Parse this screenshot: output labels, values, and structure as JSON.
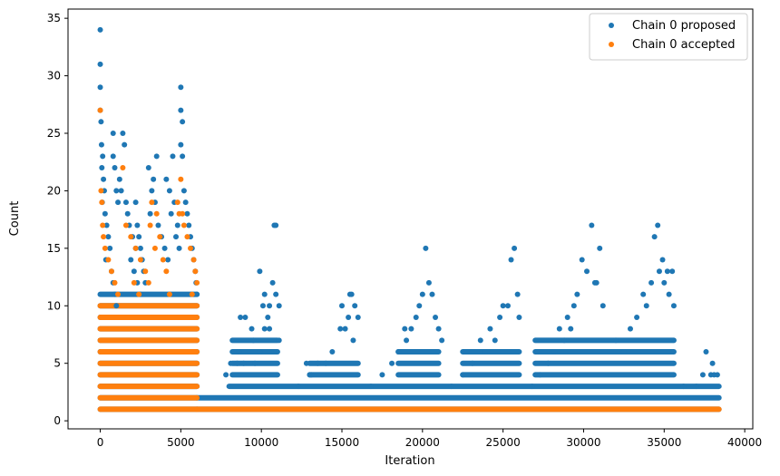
{
  "chart_data": {
    "type": "scatter",
    "title": "",
    "xlabel": "Iteration",
    "ylabel": "Count",
    "xlim": [
      -2000,
      40500
    ],
    "ylim": [
      -0.7,
      35.8
    ],
    "xticks": [
      0,
      5000,
      10000,
      15000,
      20000,
      25000,
      30000,
      35000,
      40000
    ],
    "xtick_labels": [
      "0",
      "5000",
      "10000",
      "15000",
      "20000",
      "25000",
      "30000",
      "35000",
      "40000"
    ],
    "yticks": [
      0,
      5,
      10,
      15,
      20,
      25,
      30,
      35
    ],
    "ytick_labels": [
      "0",
      "5",
      "10",
      "15",
      "20",
      "25",
      "30",
      "35"
    ],
    "grid": false,
    "legend_position": "top-right",
    "series": [
      {
        "name": "Chain 0 proposed",
        "color": "#1f77b4",
        "points": [
          [
            0,
            34
          ],
          [
            0,
            31
          ],
          [
            0,
            29
          ],
          [
            0,
            27
          ],
          [
            50,
            26
          ],
          [
            80,
            24
          ],
          [
            150,
            23
          ],
          [
            100,
            22
          ],
          [
            200,
            21
          ],
          [
            250,
            20
          ],
          [
            120,
            19
          ],
          [
            300,
            18
          ],
          [
            400,
            17
          ],
          [
            500,
            16
          ],
          [
            600,
            15
          ],
          [
            350,
            14
          ],
          [
            700,
            13
          ],
          [
            800,
            12
          ],
          [
            900,
            11
          ],
          [
            1000,
            10
          ],
          [
            1400,
            25
          ],
          [
            800,
            25
          ],
          [
            1500,
            24
          ],
          [
            800,
            23
          ],
          [
            900,
            22
          ],
          [
            1200,
            21
          ],
          [
            1000,
            20
          ],
          [
            1300,
            20
          ],
          [
            1100,
            19
          ],
          [
            1600,
            19
          ],
          [
            1700,
            18
          ],
          [
            1800,
            17
          ],
          [
            2000,
            16
          ],
          [
            2200,
            15
          ],
          [
            1900,
            14
          ],
          [
            2100,
            13
          ],
          [
            2300,
            12
          ],
          [
            2500,
            11
          ],
          [
            2200,
            19
          ],
          [
            2300,
            17
          ],
          [
            2400,
            16
          ],
          [
            2500,
            15
          ],
          [
            2600,
            14
          ],
          [
            2700,
            13
          ],
          [
            2800,
            12
          ],
          [
            3000,
            22
          ],
          [
            3500,
            23
          ],
          [
            3300,
            21
          ],
          [
            3200,
            20
          ],
          [
            3400,
            19
          ],
          [
            3100,
            18
          ],
          [
            3600,
            17
          ],
          [
            3800,
            16
          ],
          [
            4000,
            15
          ],
          [
            4100,
            21
          ],
          [
            4300,
            20
          ],
          [
            4600,
            19
          ],
          [
            4400,
            18
          ],
          [
            4800,
            17
          ],
          [
            4700,
            16
          ],
          [
            4900,
            15
          ],
          [
            4500,
            23
          ],
          [
            4200,
            14
          ],
          [
            5000,
            29
          ],
          [
            5000,
            27
          ],
          [
            5100,
            26
          ],
          [
            5000,
            24
          ],
          [
            5100,
            23
          ],
          [
            5200,
            20
          ],
          [
            5300,
            19
          ],
          [
            5400,
            18
          ],
          [
            5500,
            17
          ],
          [
            5600,
            16
          ],
          [
            5700,
            15
          ],
          [
            5800,
            14
          ],
          [
            5900,
            13
          ],
          [
            5950,
            12
          ],
          [
            6000,
            11
          ],
          [
            7800,
            4
          ],
          [
            8100,
            5
          ],
          [
            8500,
            5
          ],
          [
            8900,
            5
          ],
          [
            8600,
            6
          ],
          [
            8700,
            9
          ],
          [
            9000,
            9
          ],
          [
            9400,
            8
          ],
          [
            9500,
            7
          ],
          [
            9600,
            5
          ],
          [
            9900,
            6
          ],
          [
            9900,
            13
          ],
          [
            10100,
            10
          ],
          [
            10200,
            11
          ],
          [
            10200,
            8
          ],
          [
            10400,
            9
          ],
          [
            10500,
            10
          ],
          [
            10500,
            8
          ],
          [
            10700,
            12
          ],
          [
            10800,
            17
          ],
          [
            10900,
            17
          ],
          [
            10900,
            11
          ],
          [
            11100,
            10
          ],
          [
            11100,
            7
          ],
          [
            12300,
            3
          ],
          [
            12800,
            5
          ],
          [
            13000,
            4
          ],
          [
            13100,
            4
          ],
          [
            13500,
            5
          ],
          [
            14000,
            5
          ],
          [
            14400,
            6
          ],
          [
            14900,
            8
          ],
          [
            15000,
            10
          ],
          [
            15200,
            8
          ],
          [
            15400,
            9
          ],
          [
            15500,
            11
          ],
          [
            15600,
            11
          ],
          [
            15800,
            10
          ],
          [
            16000,
            9
          ],
          [
            15700,
            7
          ],
          [
            16800,
            3
          ],
          [
            17500,
            4
          ],
          [
            18100,
            5
          ],
          [
            18500,
            6
          ],
          [
            18900,
            8
          ],
          [
            19000,
            7
          ],
          [
            19300,
            8
          ],
          [
            19600,
            9
          ],
          [
            19800,
            10
          ],
          [
            20000,
            11
          ],
          [
            20200,
            15
          ],
          [
            20400,
            12
          ],
          [
            20600,
            11
          ],
          [
            20800,
            9
          ],
          [
            21000,
            8
          ],
          [
            21200,
            7
          ],
          [
            21800,
            3
          ],
          [
            22500,
            4
          ],
          [
            23100,
            5
          ],
          [
            23600,
            7
          ],
          [
            23900,
            6
          ],
          [
            24200,
            8
          ],
          [
            24500,
            7
          ],
          [
            24800,
            9
          ],
          [
            25000,
            10
          ],
          [
            25300,
            10
          ],
          [
            25500,
            14
          ],
          [
            25700,
            15
          ],
          [
            25900,
            11
          ],
          [
            26000,
            9
          ],
          [
            26800,
            3
          ],
          [
            27300,
            4
          ],
          [
            27800,
            5
          ],
          [
            28200,
            6
          ],
          [
            28500,
            8
          ],
          [
            28800,
            7
          ],
          [
            29000,
            9
          ],
          [
            29200,
            8
          ],
          [
            29400,
            10
          ],
          [
            29600,
            11
          ],
          [
            29900,
            14
          ],
          [
            30200,
            13
          ],
          [
            30500,
            17
          ],
          [
            30700,
            12
          ],
          [
            30800,
            12
          ],
          [
            31000,
            15
          ],
          [
            31200,
            10
          ],
          [
            32000,
            7
          ],
          [
            32500,
            6
          ],
          [
            32900,
            8
          ],
          [
            33300,
            9
          ],
          [
            33700,
            11
          ],
          [
            33900,
            10
          ],
          [
            34200,
            12
          ],
          [
            34400,
            16
          ],
          [
            34600,
            17
          ],
          [
            34700,
            13
          ],
          [
            34900,
            14
          ],
          [
            35000,
            12
          ],
          [
            35200,
            13
          ],
          [
            35300,
            11
          ],
          [
            35500,
            13
          ],
          [
            35600,
            10
          ],
          [
            36200,
            3
          ],
          [
            37000,
            3
          ],
          [
            37400,
            4
          ],
          [
            37600,
            6
          ],
          [
            37900,
            4
          ],
          [
            38000,
            5
          ],
          [
            38100,
            4
          ],
          [
            38300,
            4
          ]
        ]
      },
      {
        "name": "Chain 0 accepted",
        "color": "#ff7f0e",
        "points": [
          [
            0,
            27
          ],
          [
            50,
            20
          ],
          [
            100,
            19
          ],
          [
            150,
            17
          ],
          [
            200,
            16
          ],
          [
            300,
            15
          ],
          [
            500,
            14
          ],
          [
            700,
            13
          ],
          [
            900,
            12
          ],
          [
            1100,
            11
          ],
          [
            1400,
            22
          ],
          [
            1600,
            17
          ],
          [
            1900,
            16
          ],
          [
            2200,
            15
          ],
          [
            2500,
            14
          ],
          [
            2800,
            13
          ],
          [
            2100,
            12
          ],
          [
            2400,
            11
          ],
          [
            3200,
            19
          ],
          [
            3100,
            17
          ],
          [
            3500,
            18
          ],
          [
            3700,
            16
          ],
          [
            3400,
            15
          ],
          [
            3900,
            14
          ],
          [
            4100,
            13
          ],
          [
            3000,
            12
          ],
          [
            4300,
            11
          ],
          [
            4800,
            19
          ],
          [
            4900,
            18
          ],
          [
            5000,
            21
          ],
          [
            5100,
            18
          ],
          [
            5200,
            17
          ],
          [
            5400,
            16
          ],
          [
            5600,
            15
          ],
          [
            5800,
            14
          ],
          [
            5900,
            13
          ],
          [
            6000,
            12
          ],
          [
            5700,
            11
          ]
        ]
      }
    ],
    "dense_blocks": [
      {
        "series": 0,
        "x0": 0,
        "x1": 6000,
        "y0": 1,
        "y1": 11
      },
      {
        "series": 0,
        "x0": 6000,
        "x1": 38400,
        "y0": 1,
        "y1": 2
      },
      {
        "series": 0,
        "x0": 8000,
        "x1": 38400,
        "y0": 3,
        "y1": 3
      },
      {
        "series": 0,
        "x0": 8200,
        "x1": 11000,
        "y0": 4,
        "y1": 7
      },
      {
        "series": 0,
        "x0": 13000,
        "x1": 16000,
        "y0": 4,
        "y1": 5
      },
      {
        "series": 0,
        "x0": 18500,
        "x1": 21000,
        "y0": 4,
        "y1": 6
      },
      {
        "series": 0,
        "x0": 22500,
        "x1": 26000,
        "y0": 4,
        "y1": 6
      },
      {
        "series": 0,
        "x0": 27000,
        "x1": 35600,
        "y0": 4,
        "y1": 7
      },
      {
        "series": 1,
        "x0": 0,
        "x1": 6000,
        "y0": 1,
        "y1": 10
      },
      {
        "series": 1,
        "x0": 6000,
        "x1": 38400,
        "y0": 1,
        "y1": 1
      }
    ]
  }
}
